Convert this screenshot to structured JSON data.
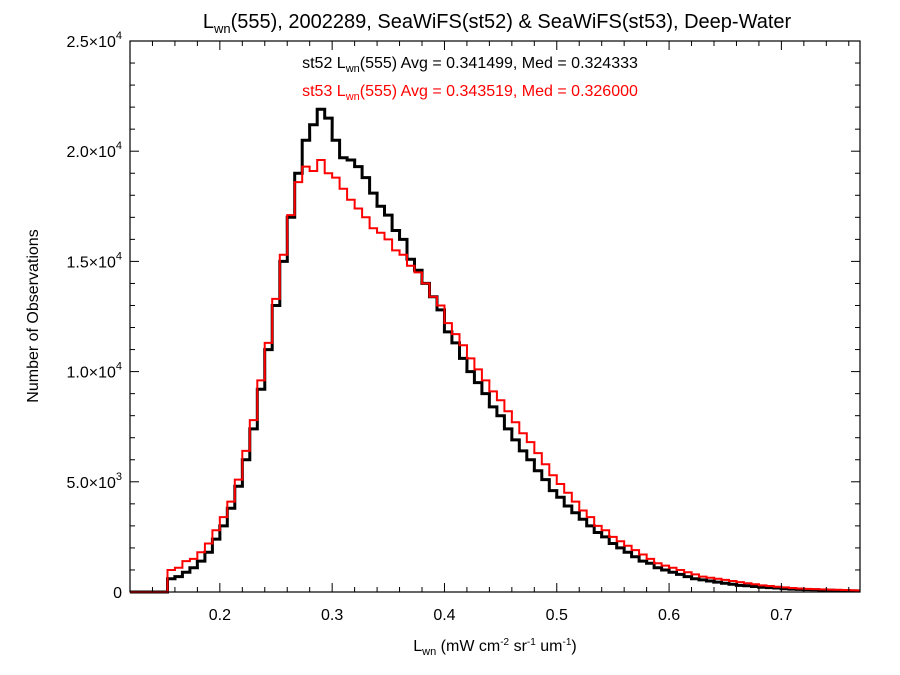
{
  "chart_data": {
    "type": "line",
    "title": {
      "prefix": "L",
      "prefix_sub": "wn",
      "rest": "(555), 2002289, SeaWiFS(st52) & SeaWiFS(st53), Deep-Water"
    },
    "xlabel": {
      "main": "L",
      "main_sub": "wn",
      "units_a": " (mW cm",
      "exp1": "-2",
      "units_b": " sr",
      "exp2": "-1",
      "units_c": " um",
      "exp3": "-1",
      "units_d": ")"
    },
    "ylabel": "Number of Observations",
    "xlim": [
      0.12,
      0.77
    ],
    "ylim": [
      0,
      25000
    ],
    "x_ticks": [
      {
        "value": 0.2,
        "label": "0.2"
      },
      {
        "value": 0.3,
        "label": "0.3"
      },
      {
        "value": 0.4,
        "label": "0.4"
      },
      {
        "value": 0.5,
        "label": "0.5"
      },
      {
        "value": 0.6,
        "label": "0.6"
      },
      {
        "value": 0.7,
        "label": "0.7"
      }
    ],
    "y_ticks": [
      {
        "value": 0,
        "mantissa": "0",
        "exponent": ""
      },
      {
        "value": 5000,
        "mantissa": "5.0×10",
        "exponent": "3"
      },
      {
        "value": 10000,
        "mantissa": "1.0×10",
        "exponent": "4"
      },
      {
        "value": 15000,
        "mantissa": "1.5×10",
        "exponent": "4"
      },
      {
        "value": 20000,
        "mantissa": "2.0×10",
        "exponent": "4"
      },
      {
        "value": 25000,
        "mantissa": "2.5×10",
        "exponent": "4"
      }
    ],
    "annotations": [
      {
        "pre": "st52 L",
        "sub": "wn",
        "post": "(555) Avg = 0.341499, Med = 0.324333",
        "color": "#000000"
      },
      {
        "pre": "st53 L",
        "sub": "wn",
        "post": "(555) Avg = 0.343519, Med = 0.326000",
        "color": "#ff0000"
      }
    ],
    "series": [
      {
        "id": "st52",
        "color": "#000000",
        "stroke": 3.0,
        "x": [
          0.15,
          0.1567,
          0.1633,
          0.17,
          0.1767,
          0.1833,
          0.19,
          0.1967,
          0.2033,
          0.21,
          0.2167,
          0.2233,
          0.23,
          0.2367,
          0.2433,
          0.25,
          0.2567,
          0.2633,
          0.27,
          0.2767,
          0.2833,
          0.29,
          0.2967,
          0.3033,
          0.31,
          0.3167,
          0.3233,
          0.33,
          0.3367,
          0.3433,
          0.35,
          0.3567,
          0.3633,
          0.37,
          0.3767,
          0.3833,
          0.39,
          0.3967,
          0.4033,
          0.41,
          0.4167,
          0.4233,
          0.43,
          0.4367,
          0.4433,
          0.45,
          0.4567,
          0.4633,
          0.47,
          0.4767,
          0.4833,
          0.49,
          0.4967,
          0.5033,
          0.51,
          0.5167,
          0.5233,
          0.53,
          0.5367,
          0.5433,
          0.55,
          0.5567,
          0.5633,
          0.57,
          0.5767,
          0.5833,
          0.59,
          0.5967,
          0.6033,
          0.61,
          0.6167,
          0.6233,
          0.63,
          0.6367,
          0.6433,
          0.65,
          0.6567,
          0.6633,
          0.67,
          0.6767,
          0.6833,
          0.69,
          0.6967,
          0.7033,
          0.71,
          0.7167,
          0.7233,
          0.73,
          0.7367,
          0.7433,
          0.75,
          0.7567,
          0.7633,
          0.77
        ],
        "y": [
          0,
          600,
          700,
          900,
          1100,
          1400,
          1800,
          2400,
          3000,
          3800,
          4800,
          6000,
          7400,
          9200,
          11000,
          13000,
          15000,
          17000,
          19000,
          20500,
          21200,
          21900,
          21500,
          20500,
          19700,
          19600,
          19300,
          18800,
          18100,
          17500,
          17100,
          16400,
          16000,
          15100,
          14600,
          14000,
          13400,
          12800,
          11800,
          11300,
          10600,
          10000,
          9500,
          9000,
          8400,
          8000,
          7400,
          6900,
          6400,
          6000,
          5500,
          5100,
          4600,
          4300,
          3900,
          3600,
          3300,
          3000,
          2700,
          2500,
          2200,
          2000,
          1800,
          1600,
          1400,
          1300,
          1100,
          1000,
          900,
          800,
          700,
          600,
          550,
          500,
          450,
          400,
          350,
          300,
          280,
          250,
          220,
          200,
          180,
          150,
          130,
          120,
          110,
          100,
          90,
          80,
          70,
          60,
          50,
          50
        ]
      },
      {
        "id": "st53",
        "color": "#ff0000",
        "stroke": 2.0,
        "x": [
          0.15,
          0.1567,
          0.1633,
          0.17,
          0.1767,
          0.1833,
          0.19,
          0.1967,
          0.2033,
          0.21,
          0.2167,
          0.2233,
          0.23,
          0.2367,
          0.2433,
          0.25,
          0.2567,
          0.2633,
          0.27,
          0.2767,
          0.2833,
          0.29,
          0.2967,
          0.3033,
          0.31,
          0.3167,
          0.3233,
          0.33,
          0.3367,
          0.3433,
          0.35,
          0.3567,
          0.3633,
          0.37,
          0.3767,
          0.3833,
          0.39,
          0.3967,
          0.4033,
          0.41,
          0.4167,
          0.4233,
          0.43,
          0.4367,
          0.4433,
          0.45,
          0.4567,
          0.4633,
          0.47,
          0.4767,
          0.4833,
          0.49,
          0.4967,
          0.5033,
          0.51,
          0.5167,
          0.5233,
          0.53,
          0.5367,
          0.5433,
          0.55,
          0.5567,
          0.5633,
          0.57,
          0.5767,
          0.5833,
          0.59,
          0.5967,
          0.6033,
          0.61,
          0.6167,
          0.6233,
          0.63,
          0.6367,
          0.6433,
          0.65,
          0.6567,
          0.6633,
          0.67,
          0.6767,
          0.6833,
          0.69,
          0.6967,
          0.7033,
          0.71,
          0.7167,
          0.7233,
          0.73,
          0.7367,
          0.7433,
          0.75,
          0.7567,
          0.7633,
          0.77
        ],
        "y": [
          0,
          1000,
          1100,
          1400,
          1500,
          1800,
          2200,
          2800,
          3400,
          4100,
          5100,
          6400,
          7800,
          9600,
          11300,
          13300,
          15300,
          17100,
          18600,
          19300,
          19100,
          19600,
          19000,
          18800,
          18300,
          17800,
          17400,
          17000,
          16500,
          16300,
          16000,
          15500,
          15300,
          14800,
          14500,
          14000,
          13400,
          13000,
          12200,
          11700,
          11200,
          10600,
          10100,
          9600,
          9100,
          8700,
          8200,
          7700,
          7200,
          6800,
          6300,
          5800,
          5300,
          4900,
          4500,
          4100,
          3700,
          3400,
          3000,
          2800,
          2500,
          2300,
          2100,
          1900,
          1700,
          1500,
          1300,
          1200,
          1100,
          1000,
          900,
          800,
          700,
          650,
          600,
          550,
          500,
          450,
          400,
          350,
          300,
          270,
          240,
          210,
          180,
          160,
          140,
          130,
          120,
          110,
          100,
          90,
          80,
          70
        ]
      }
    ]
  }
}
